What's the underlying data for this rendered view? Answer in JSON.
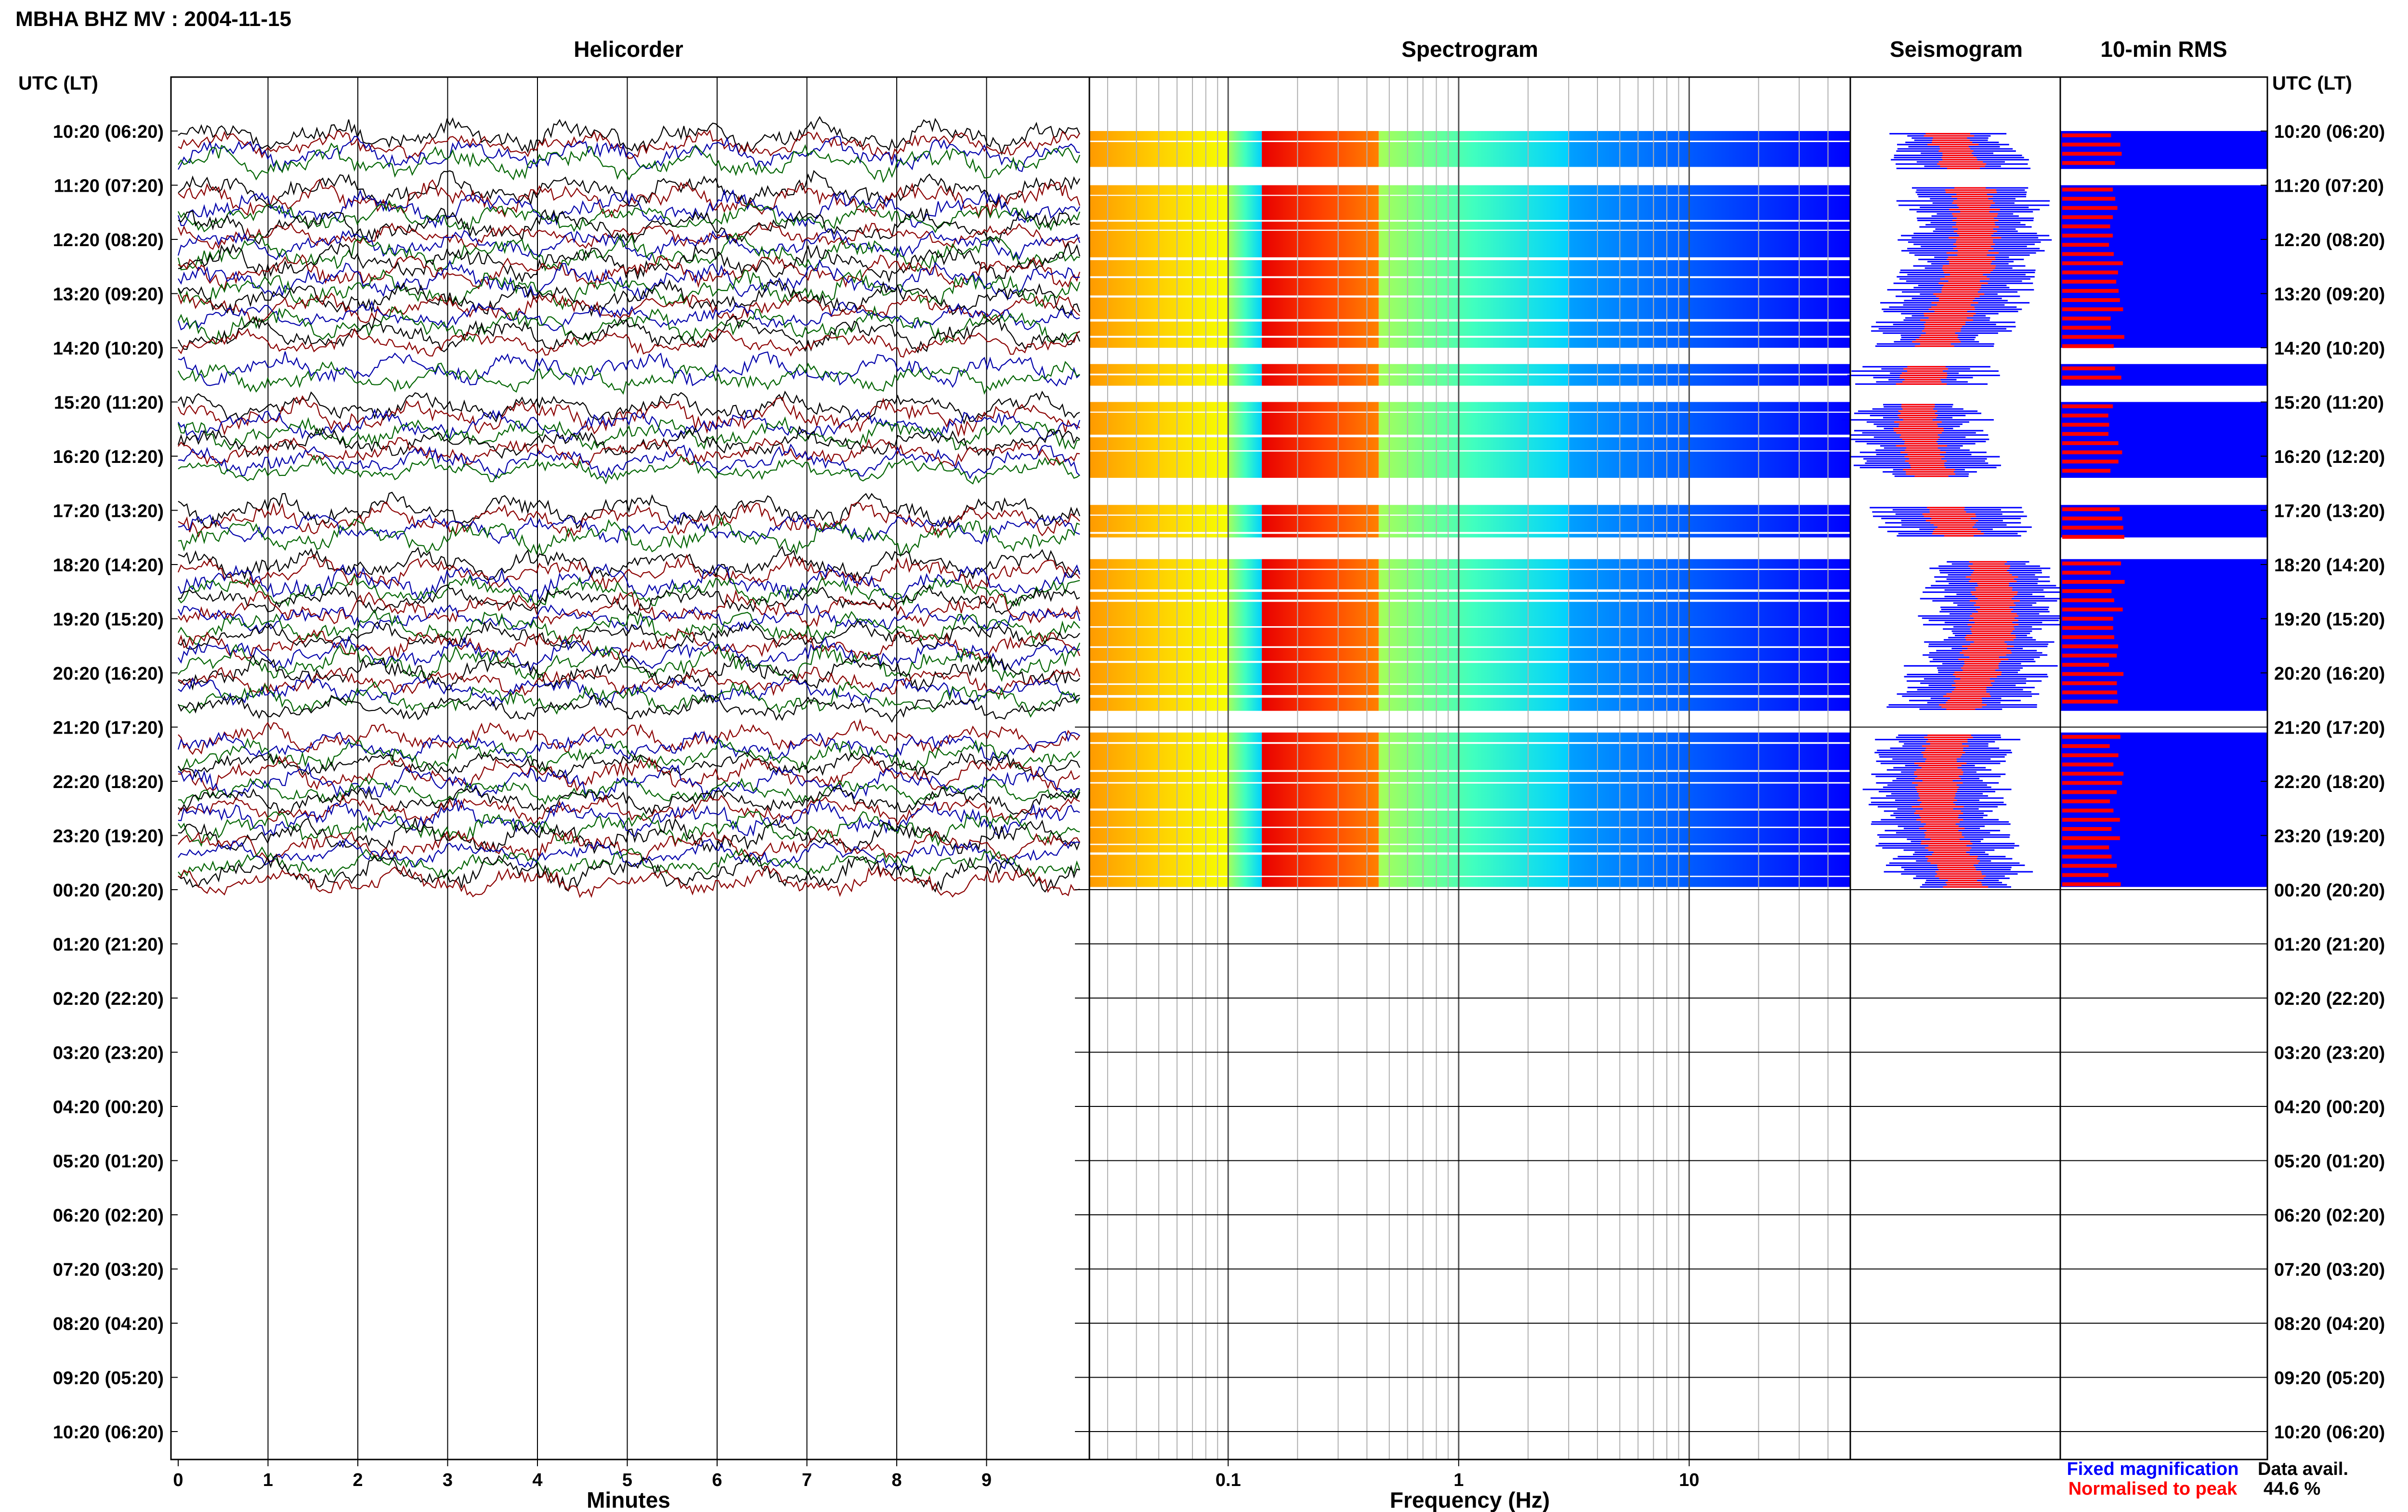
{
  "page": {
    "title": "MBHA BHZ MV : 2004-11-15"
  },
  "colors": {
    "trace": [
      "#000000",
      "#8b0000",
      "#0000aa",
      "#006400"
    ],
    "fixed": "#0000ff",
    "normalised": "#ff0000",
    "frame": "#000000",
    "grid": "#b0b0b0"
  },
  "chart_data": [
    {
      "type": "line",
      "name": "helicorder",
      "title": "Helicorder",
      "xlabel": "Minutes",
      "ylabel": "UTC (LT)",
      "x_ticks": [
        0,
        1,
        2,
        3,
        4,
        5,
        6,
        7,
        8,
        9
      ],
      "xlim": [
        0,
        10
      ],
      "rows_utc": [
        "10:20 (06:20)",
        "11:20 (07:20)",
        "12:20 (08:20)",
        "13:20 (09:20)",
        "14:20 (10:20)",
        "15:20 (11:20)",
        "16:20 (12:20)",
        "17:20 (13:20)",
        "18:20 (14:20)",
        "19:20 (15:20)",
        "20:20 (16:20)",
        "21:20 (17:20)",
        "22:20 (18:20)",
        "23:20 (19:20)",
        "00:20 (20:20)",
        "01:20 (21:20)",
        "02:20 (22:20)",
        "03:20 (23:20)",
        "04:20 (00:20)",
        "05:20 (01:20)",
        "06:20 (02:20)",
        "07:20 (03:20)",
        "08:20 (04:20)",
        "09:20 (05:20)",
        "10:20 (06:20)"
      ],
      "data_segments_hours": [
        [
          0,
          0.7
        ],
        [
          1.0,
          4.0
        ],
        [
          4.3,
          4.7
        ],
        [
          5.0,
          6.4
        ],
        [
          6.9,
          7.5
        ],
        [
          7.9,
          10.7
        ],
        [
          11.1,
          13.95
        ]
      ]
    },
    {
      "type": "heatmap",
      "name": "spectrogram",
      "title": "Spectrogram",
      "xlabel": "Frequency (Hz)",
      "x_scale": "log",
      "xlim": [
        0.025,
        50
      ],
      "x_ticks": [
        0.1,
        1,
        10
      ],
      "x_tick_labels": [
        "0.1",
        "1",
        "10"
      ],
      "energy_bands": [
        {
          "f_min": 0.025,
          "f_max": 0.1,
          "level": "high"
        },
        {
          "f_min": 0.1,
          "f_max": 0.14,
          "level": "medium"
        },
        {
          "f_min": 0.14,
          "f_max": 0.45,
          "level": "peak"
        },
        {
          "f_min": 0.45,
          "f_max": 3,
          "level": "medium"
        },
        {
          "f_min": 3,
          "f_max": 50,
          "level": "low"
        }
      ]
    },
    {
      "type": "bar",
      "name": "seismogram",
      "title": "Seismogram",
      "series": [
        {
          "name": "Fixed magnification",
          "color": "#0000ff"
        },
        {
          "name": "Normalised to peak",
          "color": "#ff0000"
        }
      ]
    },
    {
      "type": "bar",
      "name": "rms",
      "title": "10-min RMS",
      "ylabel": "UTC (LT)",
      "series": [
        {
          "name": "Fixed magnification",
          "color": "#0000ff"
        },
        {
          "name": "Normalised to peak",
          "color": "#ff0000"
        }
      ],
      "data_availability_label": "Data avail.",
      "data_availability_value": "44.6 %"
    }
  ]
}
